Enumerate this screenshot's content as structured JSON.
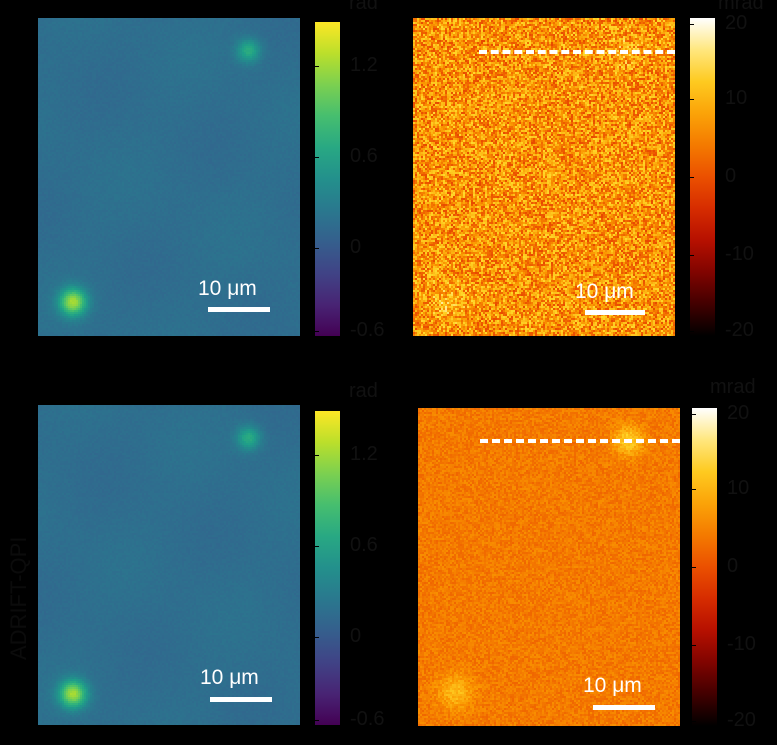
{
  "row_labels": [
    "ADRIFT-QPI"
  ],
  "panels": [
    {
      "id": "a",
      "colormap": "viridis",
      "scalebar_label": "10 μm",
      "unit_label": "rad",
      "colorbar_ticks": [
        "1.2",
        "0.6",
        "0",
        "-0.6"
      ],
      "tick_fracs": [
        0.14,
        0.43,
        0.72,
        0.985
      ],
      "dashed_line": false
    },
    {
      "id": "b",
      "colormap": "hot",
      "scalebar_label": "10 μm",
      "unit_label": "mrad",
      "colorbar_ticks": [
        "20",
        "10",
        "0",
        "-10",
        "-20"
      ],
      "tick_fracs": [
        0.02,
        0.255,
        0.5,
        0.745,
        0.985
      ],
      "dashed_line": true
    },
    {
      "id": "c",
      "colormap": "viridis",
      "scalebar_label": "10 μm",
      "unit_label": "rad",
      "colorbar_ticks": [
        "1.2",
        "0.6",
        "0",
        "-0.6"
      ],
      "tick_fracs": [
        0.14,
        0.43,
        0.72,
        0.985
      ],
      "dashed_line": false
    },
    {
      "id": "d",
      "colormap": "hot",
      "scalebar_label": "10 μm",
      "unit_label": "mrad",
      "colorbar_ticks": [
        "20",
        "10",
        "0",
        "-10",
        "-20"
      ],
      "tick_fracs": [
        0.02,
        0.255,
        0.5,
        0.745,
        0.985
      ],
      "dashed_line": true
    }
  ],
  "colors": {
    "background": "#000000",
    "scalebar": "#ffffff",
    "dashed_line": "#ffffff"
  }
}
